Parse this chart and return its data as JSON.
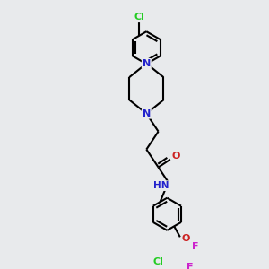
{
  "background_color": "#e8eaec",
  "bond_color": "#000000",
  "atom_colors": {
    "N": "#2222cc",
    "O": "#cc2222",
    "F": "#cc22cc",
    "Cl": "#22cc22",
    "H": "#555555",
    "C": "#000000"
  },
  "figsize": [
    3.0,
    3.0
  ],
  "dpi": 100
}
